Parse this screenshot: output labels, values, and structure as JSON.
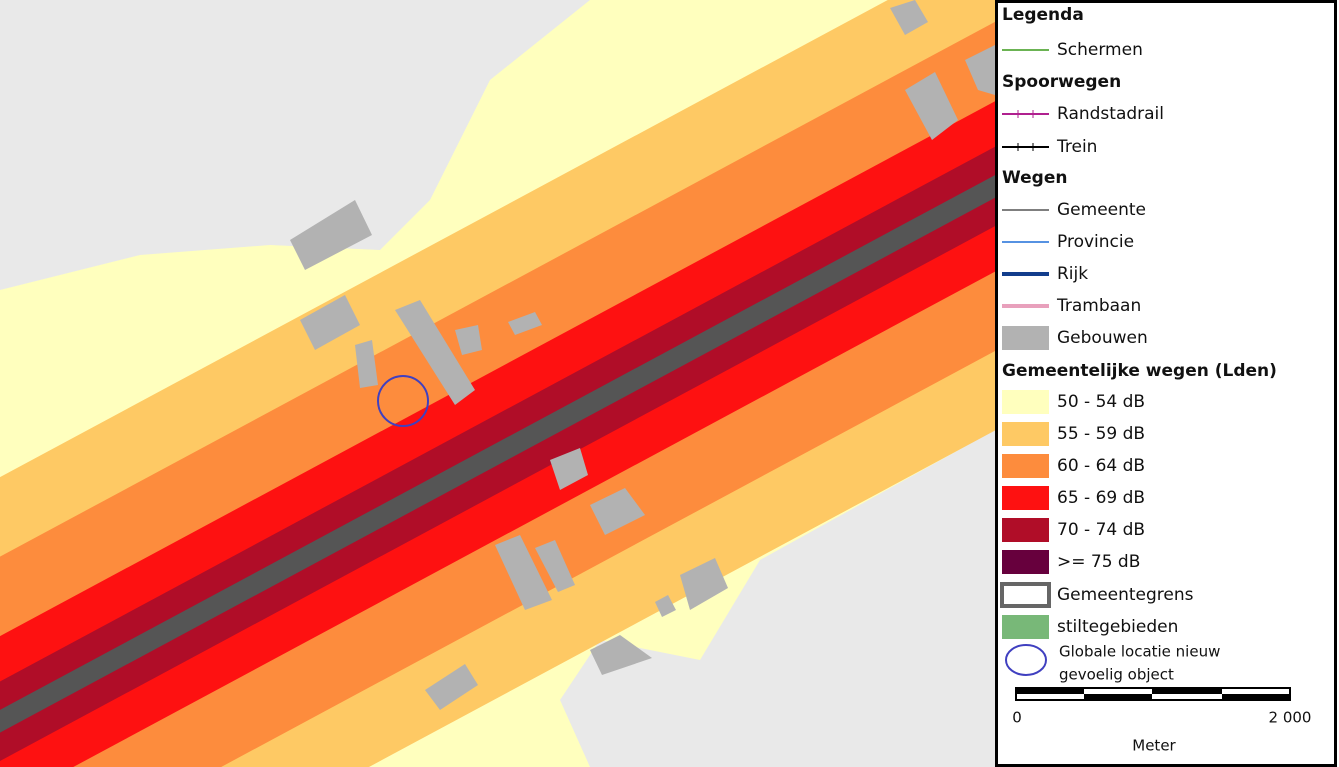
{
  "legend": {
    "title": "Legenda",
    "items": [
      {
        "label": "Schermen",
        "swatch": "line",
        "color": "#3a9a1a"
      },
      {
        "label": "Spoorwegen",
        "swatch": "heading"
      },
      {
        "label": "Randstadrail",
        "swatch": "rail",
        "color": "#b0208f"
      },
      {
        "label": "Trein",
        "swatch": "rail",
        "color": "#000000"
      },
      {
        "label": "Wegen",
        "swatch": "heading"
      },
      {
        "label": "Gemeente",
        "swatch": "line",
        "color": "#555555"
      },
      {
        "label": "Provincie",
        "swatch": "line",
        "color": "#1e6fd8"
      },
      {
        "label": "Rijk",
        "swatch": "thick",
        "color": "#123d8c"
      },
      {
        "label": "Trambaan",
        "swatch": "thick",
        "color": "#e8a0bc"
      },
      {
        "label": "Gebouwen",
        "swatch": "fill",
        "color": "#b2b2b2"
      },
      {
        "label": "Gemeentelijke wegen (Lden)",
        "swatch": "heading"
      },
      {
        "label": "50 - 54 dB",
        "swatch": "fill",
        "color": "#ffffbe"
      },
      {
        "label": "55 - 59 dB",
        "swatch": "fill",
        "color": "#fec964"
      },
      {
        "label": "60 - 64 dB",
        "swatch": "fill",
        "color": "#fd8c3d"
      },
      {
        "label": "65 - 69 dB",
        "swatch": "fill",
        "color": "#fe1111"
      },
      {
        "label": "70 - 74 dB",
        "swatch": "fill",
        "color": "#b00d28"
      },
      {
        "label": ">= 75 dB",
        "swatch": "fill",
        "color": "#67003d"
      },
      {
        "label": "Gemeentegrens",
        "swatch": "outline",
        "color": "#666666"
      },
      {
        "label": "stiltegebieden",
        "swatch": "fill",
        "color": "#78b878"
      },
      {
        "label": [
          "Globale locatie nieuw",
          "gevoelig object"
        ],
        "swatch": "circle",
        "color": "#4040c0"
      }
    ],
    "scale": {
      "start": "0",
      "end": "2 000",
      "unit": "Meter"
    }
  }
}
